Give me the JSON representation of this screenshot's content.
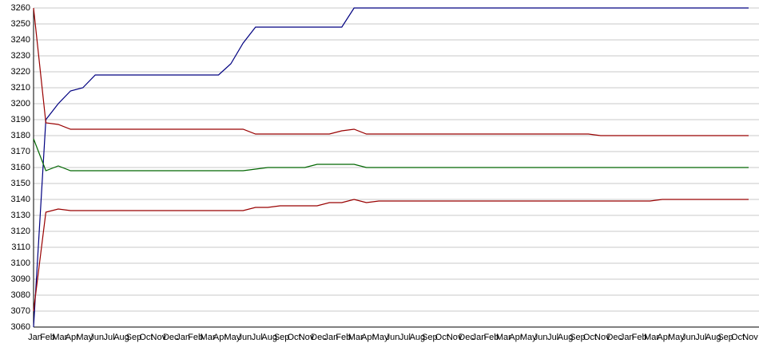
{
  "chart_data": {
    "type": "line",
    "categories": [
      "Jan",
      "Feb",
      "Mar",
      "Apr",
      "May",
      "Jun",
      "Jul",
      "Aug",
      "Sep",
      "Oct",
      "Nov",
      "Dec",
      "Jan",
      "Feb",
      "Mar",
      "Apr",
      "May",
      "Jun",
      "Jul",
      "Aug",
      "Sep",
      "Oct",
      "Nov",
      "Dec",
      "Jan",
      "Feb",
      "Mar",
      "Apr",
      "May",
      "Jun",
      "Jul",
      "Aug",
      "Sep",
      "Oct",
      "Nov",
      "Dec",
      "Jan",
      "Feb",
      "Mar",
      "Apr",
      "May",
      "Jun",
      "Jul",
      "Aug",
      "Sep",
      "Oct",
      "Nov",
      "Dec",
      "Jan",
      "Feb",
      "Mar",
      "Apr",
      "May",
      "Jun",
      "Jul",
      "Aug",
      "Sep",
      "Oct",
      "Nov"
    ],
    "series": [
      {
        "color": "#000080",
        "values": [
          3060,
          3190,
          3200,
          3208,
          3210,
          3218,
          3218,
          3218,
          3218,
          3218,
          3218,
          3218,
          3218,
          3218,
          3218,
          3218,
          3225,
          3238,
          3248,
          3248,
          3248,
          3248,
          3248,
          3248,
          3248,
          3248,
          3260,
          3260,
          3260,
          3260,
          3260,
          3260,
          3260,
          3260,
          3260,
          3260,
          3260,
          3260,
          3260,
          3260,
          3260,
          3260,
          3260,
          3260,
          3260,
          3260,
          3260,
          3260,
          3260,
          3260,
          3260,
          3260,
          3260,
          3260,
          3260,
          3260,
          3260,
          3260,
          3260
        ]
      },
      {
        "color": "#990000",
        "values": [
          3260,
          3188,
          3187,
          3184,
          3184,
          3184,
          3184,
          3184,
          3184,
          3184,
          3184,
          3184,
          3184,
          3184,
          3184,
          3184,
          3184,
          3184,
          3181,
          3181,
          3181,
          3181,
          3181,
          3181,
          3181,
          3183,
          3184,
          3181,
          3181,
          3181,
          3181,
          3181,
          3181,
          3181,
          3181,
          3181,
          3181,
          3181,
          3181,
          3181,
          3181,
          3181,
          3181,
          3181,
          3181,
          3181,
          3180,
          3180,
          3180,
          3180,
          3180,
          3180,
          3180,
          3180,
          3180,
          3180,
          3180,
          3180,
          3180
        ]
      },
      {
        "color": "#006600",
        "values": [
          3178,
          3158,
          3161,
          3158,
          3158,
          3158,
          3158,
          3158,
          3158,
          3158,
          3158,
          3158,
          3158,
          3158,
          3158,
          3158,
          3158,
          3158,
          3159,
          3160,
          3160,
          3160,
          3160,
          3162,
          3162,
          3162,
          3162,
          3160,
          3160,
          3160,
          3160,
          3160,
          3160,
          3160,
          3160,
          3160,
          3160,
          3160,
          3160,
          3160,
          3160,
          3160,
          3160,
          3160,
          3160,
          3160,
          3160,
          3160,
          3160,
          3160,
          3160,
          3160,
          3160,
          3160,
          3160,
          3160,
          3160,
          3160,
          3160
        ]
      },
      {
        "color": "#990000",
        "values": [
          3070,
          3132,
          3134,
          3133,
          3133,
          3133,
          3133,
          3133,
          3133,
          3133,
          3133,
          3133,
          3133,
          3133,
          3133,
          3133,
          3133,
          3133,
          3135,
          3135,
          3136,
          3136,
          3136,
          3136,
          3138,
          3138,
          3140,
          3138,
          3139,
          3139,
          3139,
          3139,
          3139,
          3139,
          3139,
          3139,
          3139,
          3139,
          3139,
          3139,
          3139,
          3139,
          3139,
          3139,
          3139,
          3139,
          3139,
          3139,
          3139,
          3139,
          3139,
          3140,
          3140,
          3140,
          3140,
          3140,
          3140,
          3140,
          3140
        ]
      }
    ],
    "ylim": [
      3060,
      3260
    ],
    "yticks": [
      3060,
      3070,
      3080,
      3090,
      3100,
      3110,
      3120,
      3130,
      3140,
      3150,
      3160,
      3170,
      3180,
      3190,
      3200,
      3210,
      3220,
      3230,
      3240,
      3250,
      3260
    ],
    "grid": true
  }
}
